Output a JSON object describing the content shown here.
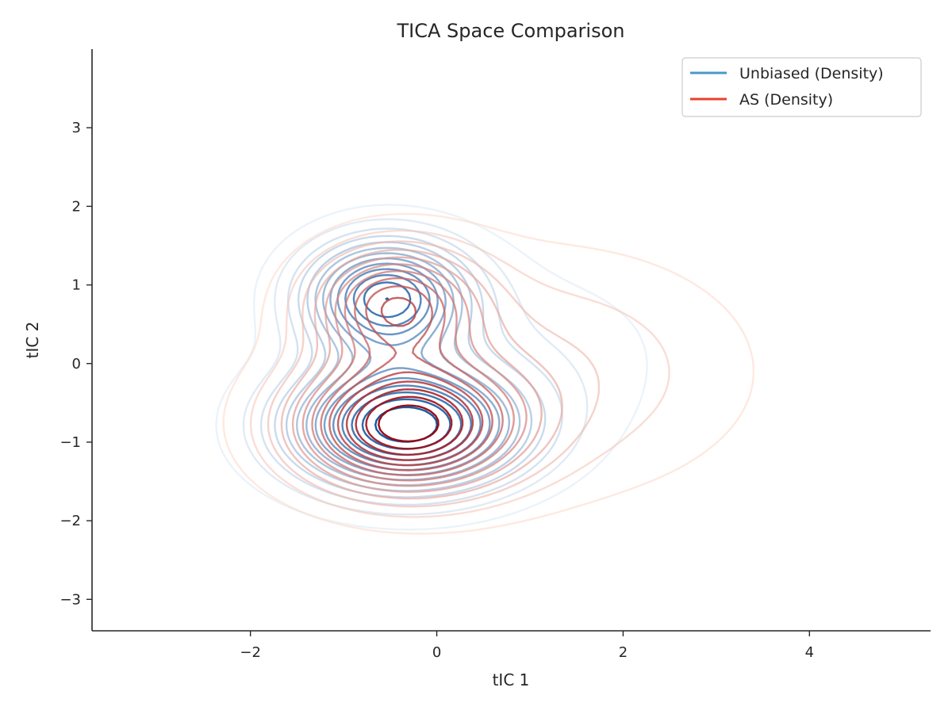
{
  "chart_data": {
    "type": "contour",
    "title": "TICA Space Comparison",
    "xlabel": "tIC 1",
    "ylabel": "tIC 2",
    "xlim": [
      -3.7,
      5.3
    ],
    "ylim": [
      -3.4,
      4.0
    ],
    "x_ticks": [
      -2,
      0,
      2,
      4
    ],
    "y_ticks": [
      -3,
      -2,
      -1,
      0,
      1,
      2,
      3
    ],
    "x_tick_labels": [
      "−2",
      "0",
      "2",
      "4"
    ],
    "y_tick_labels": [
      "−3",
      "−2",
      "−1",
      "0",
      "1",
      "2",
      "3"
    ],
    "grid": false,
    "legend_position": "top-right",
    "levels": 14,
    "series": [
      {
        "name": "Unbiased (Density)",
        "legend_color": "#4a98c9",
        "colormap": [
          "#dbe9f6",
          "#08519c"
        ],
        "components": [
          {
            "weight": 0.55,
            "mx": -0.35,
            "my": -0.8,
            "sx": 0.85,
            "sy": 0.55
          },
          {
            "weight": 0.3,
            "mx": -0.55,
            "my": 0.85,
            "sx": 0.6,
            "sy": 0.5
          },
          {
            "weight": 0.15,
            "mx": 0.9,
            "my": 0.1,
            "sx": 1.3,
            "sy": 0.95
          }
        ]
      },
      {
        "name": "AS (Density)",
        "legend_color": "#e8402e",
        "colormap": [
          "#fdd7c6",
          "#99000d"
        ],
        "components": [
          {
            "weight": 0.45,
            "mx": -0.35,
            "my": -0.8,
            "sx": 0.8,
            "sy": 0.55
          },
          {
            "weight": 0.2,
            "mx": -0.45,
            "my": 0.75,
            "sx": 0.6,
            "sy": 0.5
          },
          {
            "weight": 0.35,
            "mx": 1.1,
            "my": -0.1,
            "sx": 1.5,
            "sy": 1.05
          }
        ]
      }
    ]
  }
}
